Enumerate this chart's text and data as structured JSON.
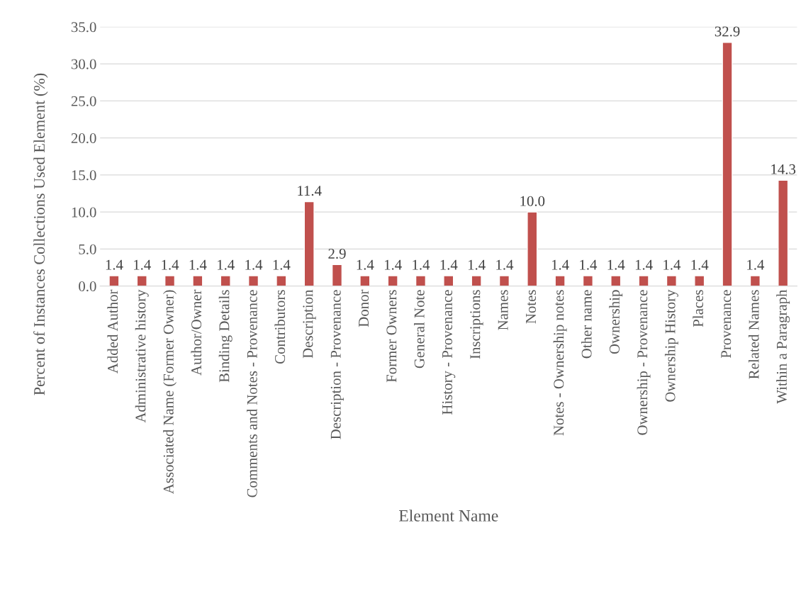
{
  "chart_data": {
    "type": "bar",
    "xlabel": "Element Name",
    "ylabel": "Percent of Instances Collections Used Element (%)",
    "categories": [
      "Added Author",
      "Administrative history",
      "Associated Name (Former Owner)",
      "Author/Owner",
      "Binding Details",
      "Comments and Notes - Provenance",
      "Contributors",
      "Description",
      "Description - Provenance",
      "Donor",
      "Former Owners",
      "General Note",
      "History - Provenance",
      "Inscriptions",
      "Names",
      "Notes",
      "Notes - Ownership notes",
      "Other name",
      "Ownership",
      "Ownership - Provenance",
      "Ownership History",
      "Places",
      "Provenance",
      "Related Names",
      "Within a Paragraph"
    ],
    "values": [
      1.4,
      1.4,
      1.4,
      1.4,
      1.4,
      1.4,
      1.4,
      11.4,
      2.9,
      1.4,
      1.4,
      1.4,
      1.4,
      1.4,
      1.4,
      10.0,
      1.4,
      1.4,
      1.4,
      1.4,
      1.4,
      1.4,
      32.9,
      1.4,
      14.3
    ],
    "value_labels": [
      "1.4",
      "1.4",
      "1.4",
      "1.4",
      "1.4",
      "1.4",
      "1.4",
      "11.4",
      "2.9",
      "1.4",
      "1.4",
      "1.4",
      "1.4",
      "1.4",
      "1.4",
      "10.0",
      "1.4",
      "1.4",
      "1.4",
      "1.4",
      "1.4",
      "1.4",
      "32.9",
      "1.4",
      "14.3"
    ],
    "color": "#c0504d",
    "grid": "y",
    "legend": false,
    "ylim": [
      0,
      35
    ],
    "yticks": [
      {
        "value": 0,
        "label": "0.0"
      },
      {
        "value": 5,
        "label": "5.0"
      },
      {
        "value": 10,
        "label": "10.0"
      },
      {
        "value": 15,
        "label": "15.0"
      },
      {
        "value": 20,
        "label": "20.0"
      },
      {
        "value": 25,
        "label": "25.0"
      },
      {
        "value": 30,
        "label": "30.0"
      },
      {
        "value": 35,
        "label": "35.0"
      }
    ]
  }
}
